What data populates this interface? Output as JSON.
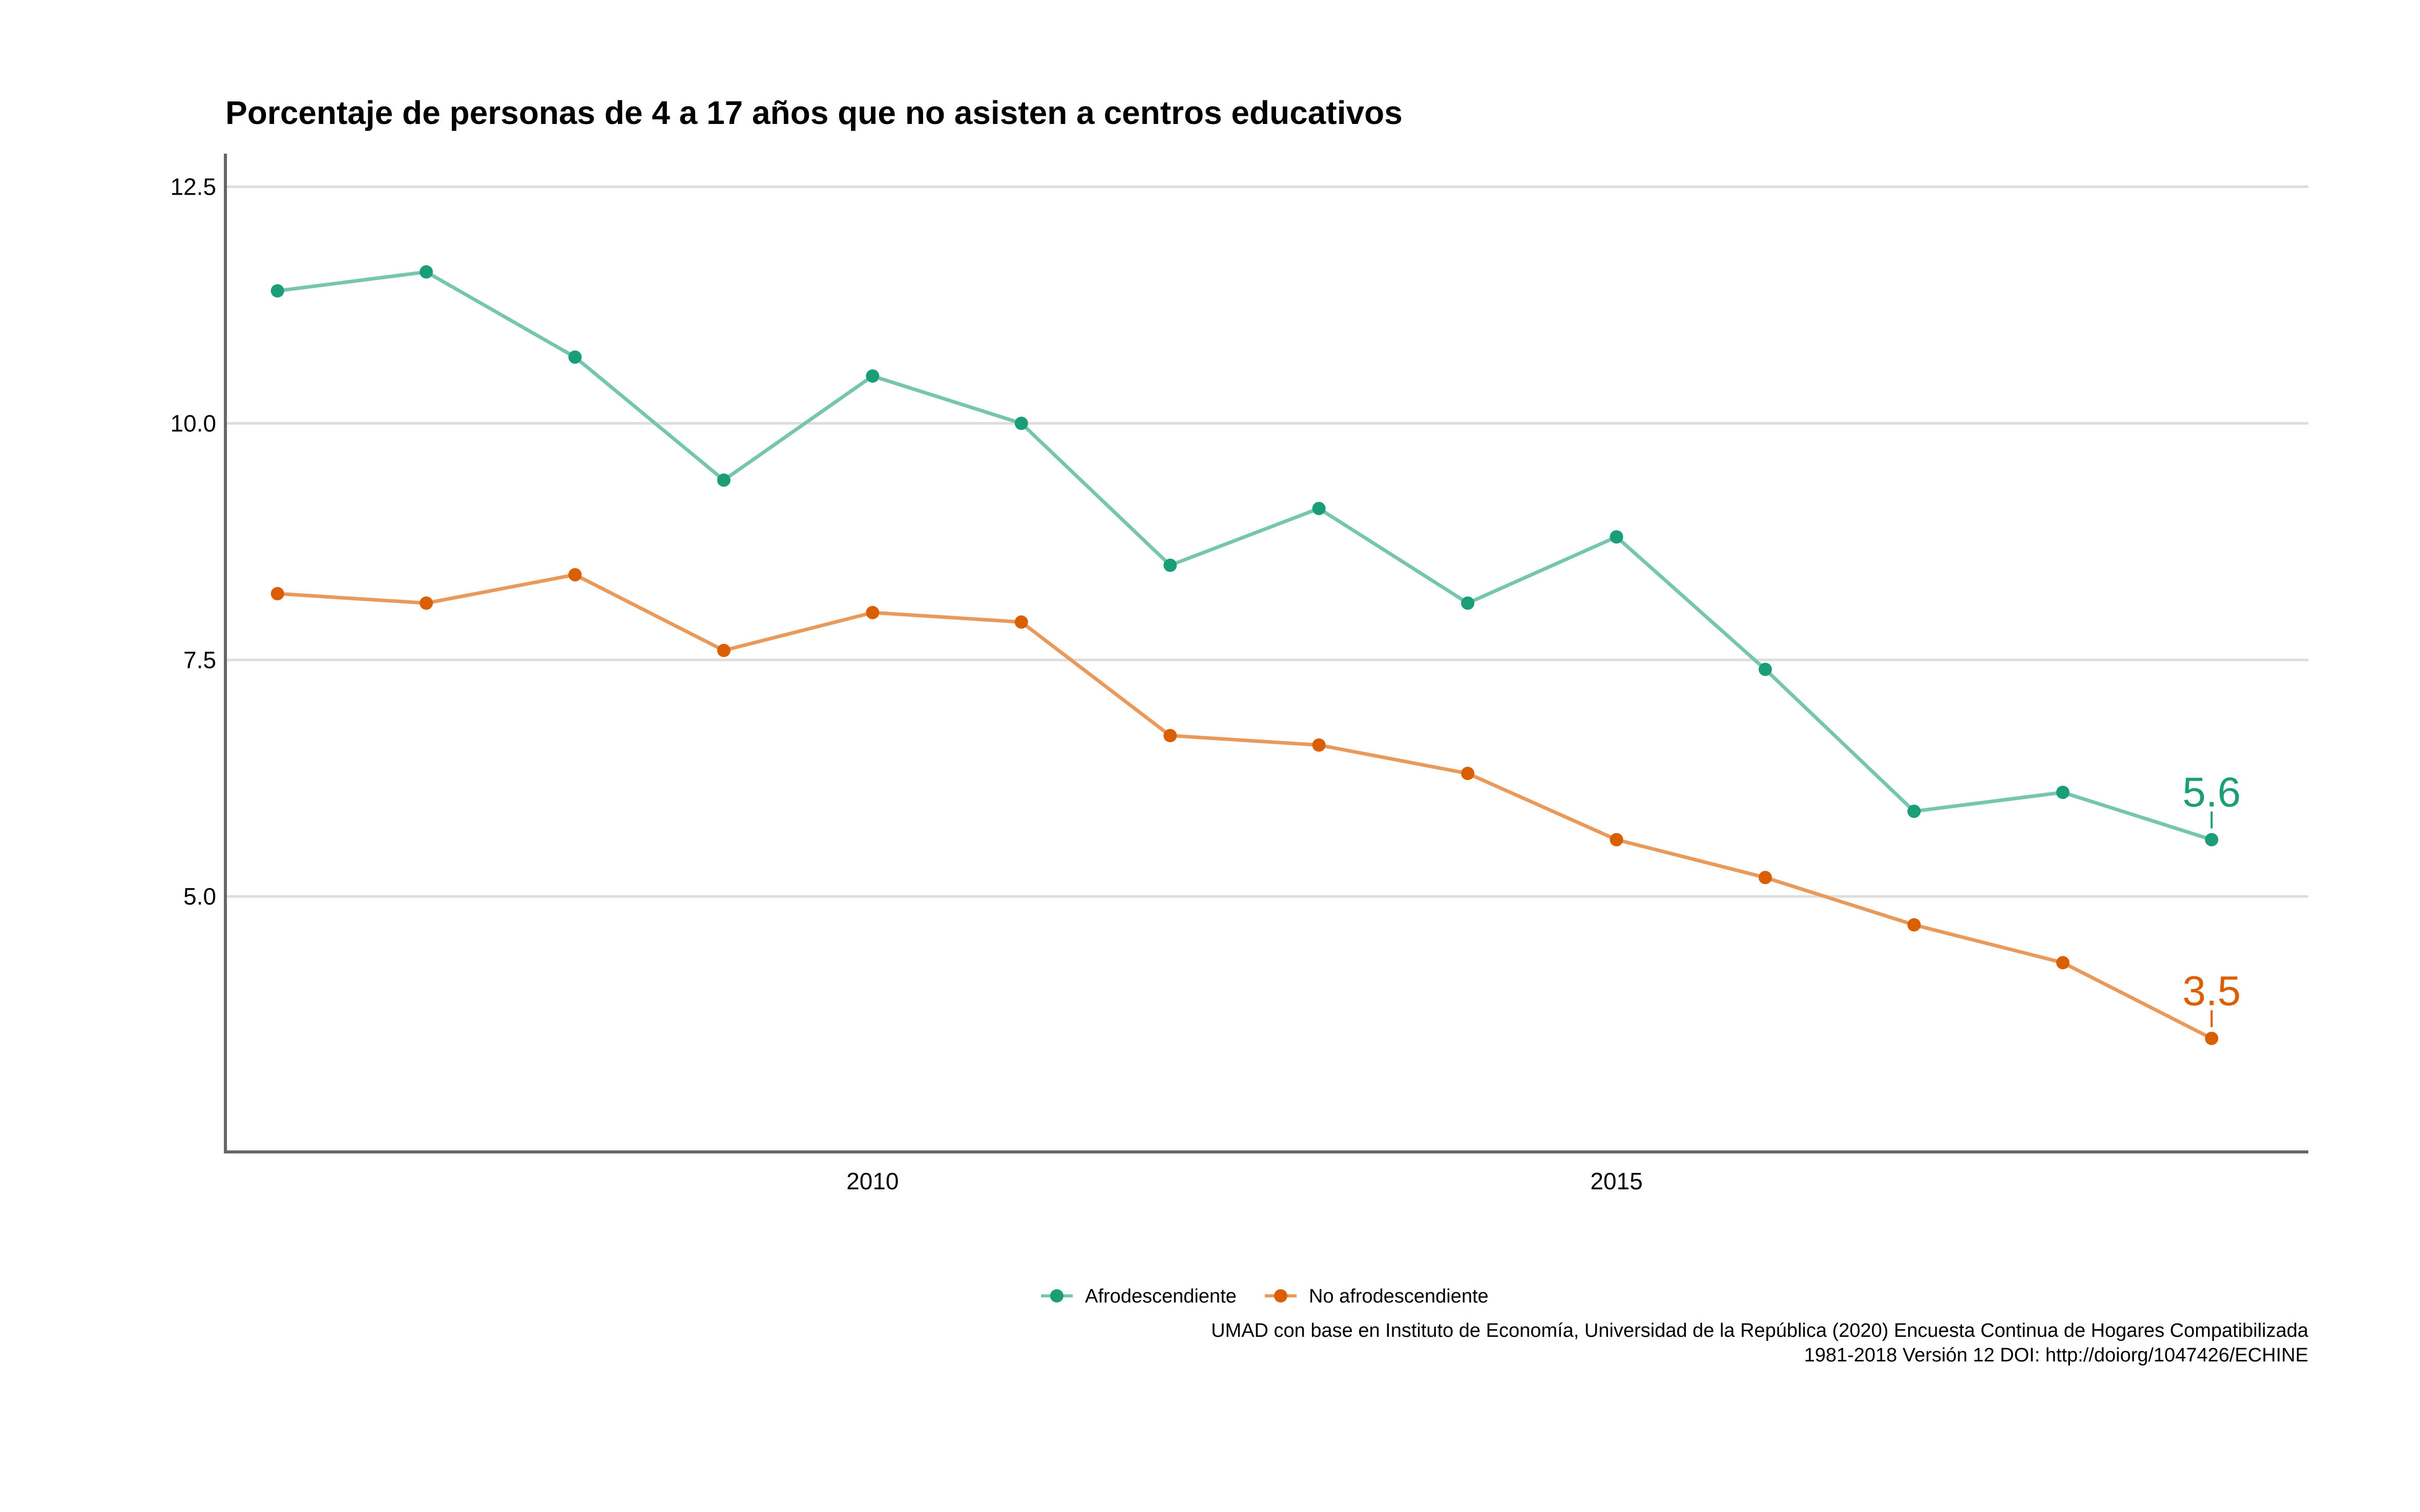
{
  "chart_data": {
    "type": "line",
    "title": "Porcentaje de personas de 4 a 17 años que no asisten a centros educativos",
    "xlabel": "",
    "ylabel": "",
    "x": [
      2006,
      2007,
      2008,
      2009,
      2010,
      2011,
      2012,
      2013,
      2014,
      2015,
      2016,
      2017,
      2018,
      2019
    ],
    "xlim": [
      2005.65,
      2019.65
    ],
    "ylim": [
      2.3,
      12.85
    ],
    "x_ticks": [
      2010,
      2015
    ],
    "x_tick_labels": [
      "2010",
      "2015"
    ],
    "y_ticks": [
      5.0,
      7.5,
      10.0,
      12.5
    ],
    "y_tick_labels": [
      "5.0",
      "7.5",
      "10.0",
      "12.5"
    ],
    "grid": "horizontal",
    "legend_position": "bottom",
    "series": [
      {
        "name": "Afrodescendiente",
        "color": "#1b9e77",
        "line_color": "#76c6ad",
        "values": [
          11.4,
          11.6,
          10.7,
          9.4,
          10.5,
          10.0,
          8.5,
          9.1,
          8.1,
          8.8,
          7.4,
          5.9,
          6.1,
          5.6
        ],
        "end_label": "5.6"
      },
      {
        "name": "No afrodescendiente",
        "color": "#d95f02",
        "line_color": "#e99a5b",
        "values": [
          8.2,
          8.1,
          8.4,
          7.6,
          8.0,
          7.9,
          6.7,
          6.6,
          6.3,
          5.6,
          5.2,
          4.7,
          4.3,
          3.5
        ],
        "end_label": "3.5"
      }
    ],
    "caption_lines": [
      "UMAD con base en Instituto de Economía, Universidad de la República (2020) Encuesta Continua de Hogares Compatibilizada",
      "1981-2018 Versión 12 DOI: http://doiorg/1047426/ECHINE"
    ]
  }
}
